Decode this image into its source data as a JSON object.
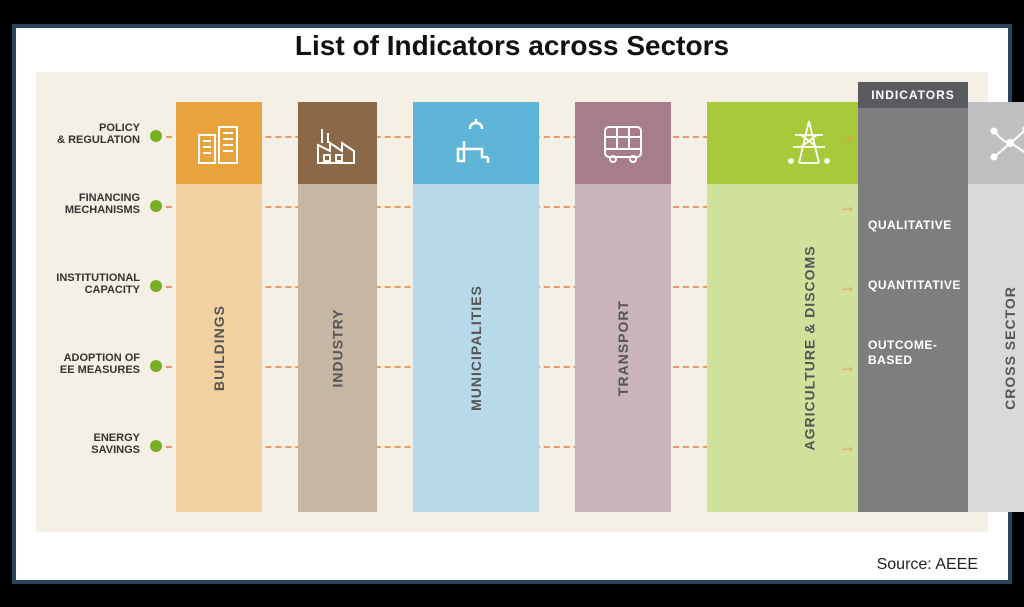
{
  "title": "List of Indicators across Sectors",
  "source": "Source: AEEE",
  "background": "#f5f0e5",
  "dot_color": "#7bb024",
  "dash_color": "#e8915a",
  "row_positions": [
    18,
    88,
    168,
    248,
    328
  ],
  "rows": [
    {
      "label": "POLICY & REGULATION"
    },
    {
      "label": "FINANCING MECHANISMS"
    },
    {
      "label": "INSTITUTIONAL CAPACITY"
    },
    {
      "label": "ADOPTION OF EE MEASURES"
    },
    {
      "label": "ENERGY SAVINGS"
    }
  ],
  "columns": [
    {
      "label": "BUILDINGS",
      "icon_bg": "#e8a33d",
      "body_bg": "#f1d1a2",
      "icon": "buildings"
    },
    {
      "label": "INDUSTRY",
      "icon_bg": "#8a6848",
      "body_bg": "#c6b6a4",
      "icon": "industry"
    },
    {
      "label": "MUNICIPALITIES",
      "icon_bg": "#5eb5d8",
      "body_bg": "#b8dae8",
      "icon": "tap"
    },
    {
      "label": "TRANSPORT",
      "icon_bg": "#a67e8a",
      "body_bg": "#c9b4bb",
      "icon": "bus"
    },
    {
      "label": "AGRICULTURE & DISCOMS",
      "icon_bg": "#a8c93a",
      "body_bg": "#d0e19b",
      "icon": "pylon"
    },
    {
      "label": "CROSS SECTOR",
      "icon_bg": "#bfc0c2",
      "body_bg": "#d8d9da",
      "icon": "network"
    }
  ],
  "indicators_header": "INDICATORS",
  "indicators": [
    "QUALITATIVE",
    "QUANTITATIVE",
    "OUTCOME-BASED"
  ],
  "indicators_header_bg": "#595b5e",
  "indicators_body_bg": "#7c7e80"
}
